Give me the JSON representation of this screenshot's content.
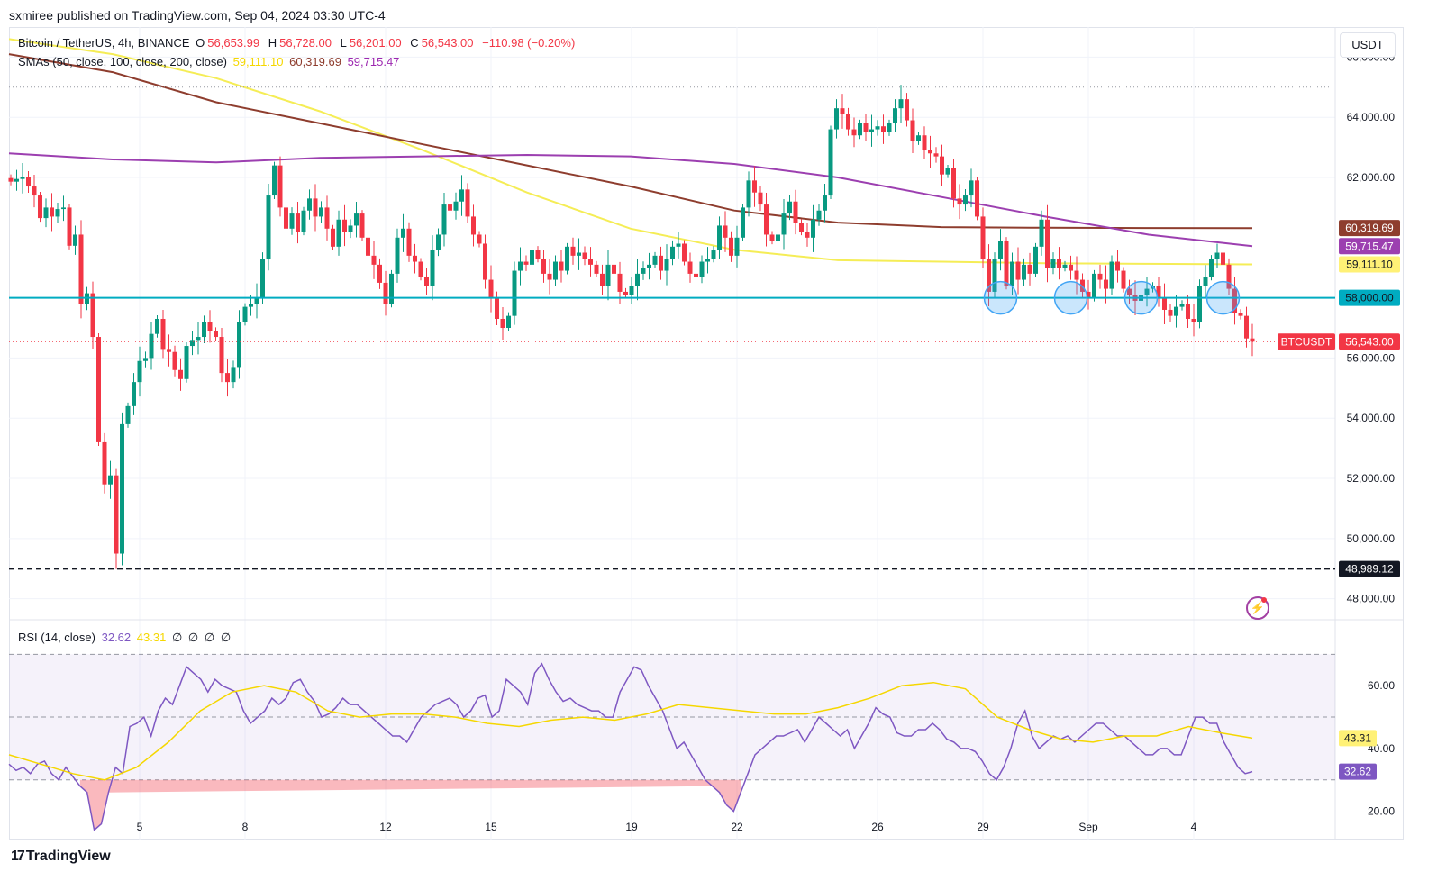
{
  "header": {
    "publisher_note": "sxmiree published on TradingView.com, Sep 04, 2024 03:30 UTC-4"
  },
  "legend": {
    "symbol": "Bitcoin / TetherUS, 4h, BINANCE",
    "open_label": "O",
    "open_value": "56,653.99",
    "high_label": "H",
    "high_value": "56,728.00",
    "low_label": "L",
    "low_value": "56,201.00",
    "close_label": "C",
    "close_value": "56,543.00",
    "change": "−110.98 (−0.20%)",
    "sma_label": "SMAs (50, close, 100, close, 200, close)",
    "sma50": "59,111.10",
    "sma100": "60,319.69",
    "sma200": "59,715.47"
  },
  "rsi_legend": {
    "label": "RSI (14, close)",
    "rsi": "32.62",
    "rsi_ma": "43.31",
    "icons": [
      "∅",
      "∅",
      "∅",
      "∅"
    ]
  },
  "currency_button": "USDT",
  "logo_text": "TradingView",
  "colors": {
    "up": "#089981",
    "down": "#f23645",
    "sma50": "#f5ed56",
    "sma100": "#8e3d2e",
    "sma200": "#9c3fb0",
    "support": "#00acc1",
    "rsi": "#7e57c2",
    "rsi_ma": "#f5d700"
  },
  "chart_data": [
    {
      "type": "candlestick",
      "title": "Bitcoin / TetherUS, 4h, BINANCE",
      "xlabel": "",
      "ylabel": "",
      "ylim": [
        47300,
        67000
      ],
      "y_ticks": [
        "66,000.00",
        "64,000.00",
        "62,000.00",
        "56,000.00",
        "54,000.00",
        "52,000.00",
        "50,000.00",
        "48,000.00"
      ],
      "x_ticks": [
        {
          "label": "5",
          "bar": 22
        },
        {
          "label": "8",
          "bar": 40
        },
        {
          "label": "12",
          "bar": 64
        },
        {
          "label": "15",
          "bar": 82
        },
        {
          "label": "19",
          "bar": 106
        },
        {
          "label": "22",
          "bar": 124
        },
        {
          "label": "26",
          "bar": 148
        },
        {
          "label": "29",
          "bar": 166
        },
        {
          "label": "Sep",
          "bar": 184
        },
        {
          "label": "4",
          "bar": 202
        }
      ],
      "close_series": [
        61860,
        61950,
        62000,
        61700,
        61400,
        60650,
        61000,
        60700,
        60950,
        61000,
        59730,
        60100,
        57800,
        58150,
        56700,
        53200,
        51800,
        52100,
        49500,
        53800,
        54400,
        55200,
        55900,
        56000,
        56800,
        57300,
        56300,
        56200,
        55600,
        55300,
        56400,
        56600,
        56700,
        57200,
        56900,
        56700,
        55500,
        55200,
        55700,
        57200,
        57700,
        57800,
        58000,
        59300,
        61400,
        62400,
        61000,
        60300,
        60800,
        60200,
        60900,
        61300,
        60700,
        61000,
        60300,
        59700,
        60600,
        60200,
        60400,
        60800,
        60000,
        59400,
        59100,
        58500,
        57800,
        58800,
        60000,
        60300,
        59400,
        59200,
        58700,
        58400,
        59600,
        60100,
        61100,
        60900,
        61200,
        61600,
        60700,
        60100,
        59800,
        58600,
        58000,
        57300,
        57000,
        57400,
        58900,
        59200,
        59100,
        59600,
        59300,
        58800,
        58600,
        59200,
        58900,
        59700,
        59400,
        59500,
        59300,
        59100,
        58800,
        58400,
        59100,
        58800,
        58200,
        58100,
        58400,
        58800,
        59000,
        59100,
        59400,
        58900,
        59300,
        59700,
        59800,
        59200,
        58800,
        58700,
        59200,
        59300,
        59600,
        60400,
        60000,
        59400,
        60000,
        61000,
        61900,
        61500,
        61100,
        60100,
        59900,
        60100,
        60800,
        61200,
        60500,
        60200,
        60000,
        60600,
        60900,
        61400,
        63600,
        64300,
        64100,
        63600,
        63400,
        63800,
        63500,
        63600,
        63700,
        63500,
        63800,
        64300,
        64600,
        63900,
        63200,
        63400,
        62900,
        62800,
        62700,
        62100,
        62300,
        61300,
        61100,
        61400,
        61900,
        60700,
        59300,
        58200,
        59300,
        59900,
        58400,
        59200,
        58600,
        59100,
        58800,
        59700,
        60600,
        59000,
        59300,
        59000,
        59100,
        58900,
        58600,
        58200,
        58000,
        58800,
        58600,
        58300,
        59200,
        58900,
        58300,
        58100,
        57900,
        58100,
        58300,
        58400,
        58000,
        57600,
        57400,
        57700,
        57800,
        57300,
        57200,
        58400,
        58700,
        59300,
        59500,
        59100,
        58300,
        57500,
        57400,
        56650,
        56543
      ],
      "series": [
        {
          "name": "SMA 50",
          "values": [
            66600,
            66100,
            65300,
            64200,
            62900,
            61500,
            60300,
            59600,
            59250,
            59200,
            59150,
            59130,
            59111
          ]
        },
        {
          "name": "SMA 100",
          "values": [
            66100,
            65500,
            64500,
            63800,
            63100,
            62400,
            61700,
            60900,
            60500,
            60350,
            60330,
            60320,
            60319
          ]
        },
        {
          "name": "SMA 200",
          "values": [
            62800,
            62600,
            62500,
            62650,
            62700,
            62750,
            62700,
            62450,
            62000,
            61350,
            60700,
            60100,
            59715
          ]
        }
      ],
      "support_level": 58000.0,
      "support_label": "58,000.00",
      "low_level": 48989.12,
      "low_label": "48,989.12",
      "last_price_label": "56,543.00",
      "last_symbol": "BTCUSDT",
      "sma50_label": "59,111.10",
      "sma100_label": "60,319.69",
      "sma200_label": "59,715.47",
      "support_touch_bars": [
        169,
        181,
        193,
        207
      ]
    },
    {
      "type": "line",
      "title": "RSI (14, close)",
      "xlabel": "",
      "ylabel": "",
      "ylim": [
        11,
        81
      ],
      "y_ticks": [
        "60.00",
        "40.00",
        "20.00"
      ],
      "bands": [
        30,
        50,
        70
      ],
      "series": [
        {
          "name": "RSI",
          "values": [
            35,
            33,
            34,
            32,
            35,
            36,
            32,
            30,
            34,
            31,
            28,
            26,
            14,
            16,
            26,
            34,
            32,
            47,
            48,
            50,
            44,
            52,
            56,
            54,
            60,
            66,
            64,
            62,
            58,
            62,
            60,
            59,
            58,
            52,
            48,
            50,
            52,
            56,
            54,
            56,
            61,
            62,
            58,
            55,
            50,
            51,
            53,
            56,
            54,
            54,
            52,
            50,
            48,
            46,
            44,
            44,
            42,
            46,
            50,
            52,
            54,
            55,
            56,
            54,
            50,
            52,
            56,
            57,
            50,
            52,
            62,
            60,
            58,
            54,
            64,
            67,
            62,
            58,
            55,
            56,
            54,
            53,
            52,
            52,
            50,
            50,
            58,
            62,
            66,
            65,
            60,
            56,
            52,
            46,
            40,
            42,
            38,
            34,
            30,
            28,
            26,
            22,
            20,
            26,
            32,
            38,
            40,
            42,
            44,
            44,
            45,
            46,
            42,
            46,
            50,
            48,
            46,
            44,
            46,
            40,
            44,
            48,
            53,
            51,
            50,
            45,
            44,
            44,
            46,
            46,
            48,
            46,
            43,
            42,
            40,
            40,
            39,
            36,
            32,
            30,
            34,
            40,
            48,
            52,
            44,
            40,
            42,
            44,
            43,
            44,
            42,
            44,
            46,
            48,
            48,
            46,
            44,
            44,
            42,
            40,
            38,
            38,
            40,
            40,
            38,
            38,
            44,
            50,
            50,
            48,
            48,
            42,
            38,
            34,
            32,
            32.62
          ]
        },
        {
          "name": "RSI MA",
          "values": [
            38,
            35,
            32,
            30,
            34,
            42,
            52,
            58,
            60,
            58,
            52,
            50,
            51,
            51,
            50,
            48,
            47,
            49,
            50,
            49,
            51,
            54,
            53,
            52,
            51,
            51,
            53,
            56,
            60,
            61,
            59,
            50,
            46,
            43,
            42,
            44,
            44,
            47,
            45,
            43.31
          ]
        }
      ],
      "rsi_label": "32.62",
      "rsi_ma_label": "43.31"
    }
  ]
}
